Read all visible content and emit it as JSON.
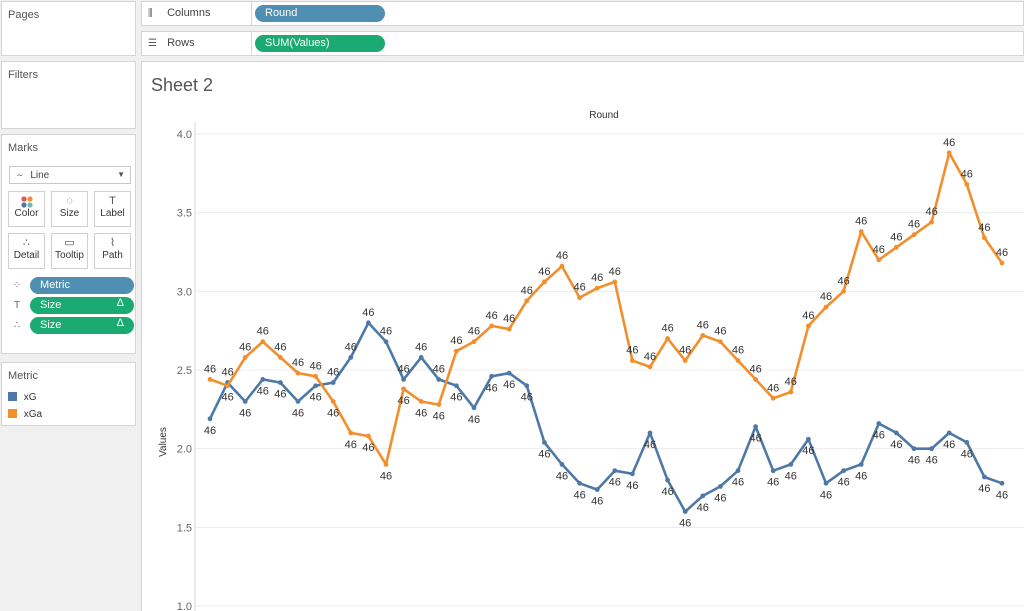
{
  "panels": {
    "pages_title": "Pages",
    "filters_title": "Filters",
    "marks_title": "Marks",
    "legend_title": "Metric"
  },
  "shelves": {
    "columns_label": "Columns",
    "columns_pill": "Round",
    "rows_label": "Rows",
    "rows_pill": "SUM(Values)"
  },
  "marks": {
    "mark_type": "Line",
    "buttons": [
      "Color",
      "Size",
      "Label",
      "Detail",
      "Tooltip",
      "Path"
    ],
    "fields": [
      {
        "icon": "color-icon",
        "label": "Metric",
        "color": "#4f8fb1"
      },
      {
        "icon": "label-icon",
        "label": "Size",
        "delta": "Δ",
        "color": "#1aaa72"
      },
      {
        "icon": "detail-icon",
        "label": "Size",
        "delta": "Δ",
        "color": "#1aaa72"
      }
    ]
  },
  "legend": {
    "items": [
      {
        "label": "xG",
        "color": "#4e79a7"
      },
      {
        "label": "xGa",
        "color": "#f28e2b"
      }
    ]
  },
  "sheet_title": "Sheet 2",
  "chart_data": {
    "type": "line",
    "title": "Round",
    "xlabel": "",
    "ylabel": "Values",
    "ylim": [
      1.0,
      4.0
    ],
    "yticks": [
      "1.0",
      "1.5",
      "2.0",
      "2.5",
      "3.0",
      "3.5",
      "4.0"
    ],
    "grid": true,
    "point_label": "46",
    "series": [
      {
        "name": "xG",
        "color": "#4e79a7",
        "values": [
          2.19,
          2.42,
          2.3,
          2.44,
          2.42,
          2.3,
          2.4,
          2.42,
          2.58,
          2.8,
          2.68,
          2.44,
          2.58,
          2.44,
          2.4,
          2.26,
          2.46,
          2.48,
          2.4,
          2.04,
          1.9,
          1.78,
          1.74,
          1.86,
          1.84,
          2.1,
          1.8,
          1.6,
          1.7,
          1.76,
          1.86,
          2.14,
          1.86,
          1.9,
          2.06,
          1.78,
          1.86,
          1.9,
          2.16,
          2.1,
          2.0,
          2.0,
          2.1,
          2.04,
          1.82,
          1.78
        ]
      },
      {
        "name": "xGa",
        "color": "#f28e2b",
        "values": [
          2.44,
          2.4,
          2.58,
          2.68,
          2.58,
          2.48,
          2.46,
          2.3,
          2.1,
          2.08,
          1.9,
          2.38,
          2.3,
          2.28,
          2.62,
          2.68,
          2.78,
          2.76,
          2.94,
          3.06,
          3.16,
          2.96,
          3.02,
          3.06,
          2.56,
          2.52,
          2.7,
          2.56,
          2.72,
          2.68,
          2.56,
          2.44,
          2.32,
          2.36,
          2.78,
          2.9,
          3.0,
          3.38,
          3.2,
          3.28,
          3.36,
          3.44,
          3.88,
          3.68,
          3.34,
          3.18
        ]
      }
    ]
  }
}
